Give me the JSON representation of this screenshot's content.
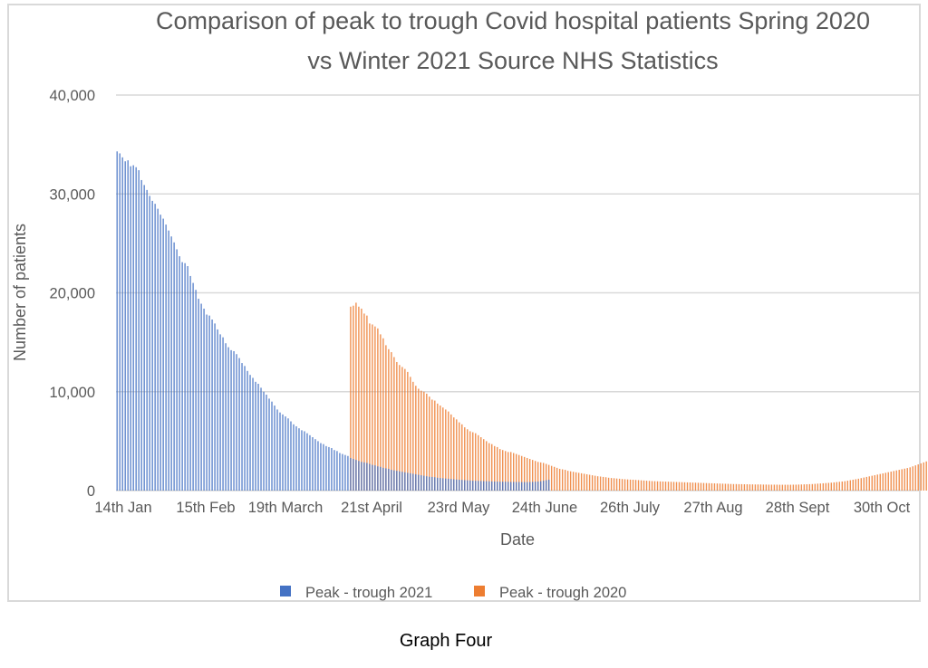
{
  "caption": "Graph Four",
  "chart_data": {
    "type": "bar",
    "title_lines": [
      "Comparison of peak to trough Covid hospital patients Spring 2020",
      "vs Winter 2021 Source NHS Statistics"
    ],
    "xlabel": "Date",
    "ylabel": "Number of patients",
    "ylim": [
      0,
      40000
    ],
    "yticks": [
      0,
      10000,
      20000,
      30000,
      40000
    ],
    "ytick_labels": [
      "0",
      "10,000",
      "20,000",
      "30,000",
      "40,000"
    ],
    "xtick_labels": [
      "14th Jan",
      "15th Feb",
      "19th March",
      "21st April",
      "23rd May",
      "24th June",
      "26th July",
      "27th Aug",
      "28th Sept",
      "30th Oct"
    ],
    "grid": true,
    "legend_position": "bottom",
    "num_categories": 296,
    "series": [
      {
        "name": "Peak - trough 2021",
        "color": "#4472c4",
        "start_index": 0,
        "values": [
          34300,
          34100,
          33700,
          33300,
          33400,
          32800,
          32900,
          32700,
          32400,
          31400,
          30900,
          30400,
          29800,
          29300,
          29000,
          28500,
          27900,
          27500,
          26900,
          26300,
          25700,
          25100,
          24400,
          23700,
          23100,
          23000,
          22700,
          21700,
          21000,
          20300,
          19400,
          18900,
          18400,
          17800,
          17700,
          17300,
          16900,
          16300,
          15800,
          15500,
          14900,
          14500,
          14200,
          14100,
          13800,
          13400,
          12900,
          12600,
          12100,
          11700,
          11400,
          11000,
          10800,
          10400,
          10000,
          9700,
          9300,
          9000,
          8600,
          8200,
          7900,
          7700,
          7500,
          7300,
          7000,
          6700,
          6500,
          6300,
          6100,
          6000,
          5800,
          5600,
          5400,
          5200,
          5000,
          4800,
          4700,
          4500,
          4400,
          4300,
          4100,
          4000,
          3800,
          3700,
          3600,
          3500,
          3300,
          3200,
          3100,
          3000,
          2900,
          2850,
          2800,
          2700,
          2600,
          2550,
          2450,
          2400,
          2300,
          2250,
          2200,
          2100,
          2050,
          2000,
          1950,
          1900,
          1850,
          1800,
          1750,
          1700,
          1650,
          1600,
          1550,
          1500,
          1450,
          1400,
          1380,
          1350,
          1300,
          1270,
          1250,
          1220,
          1200,
          1180,
          1150,
          1120,
          1100,
          1080,
          1060,
          1040,
          1020,
          1000,
          990,
          980,
          970,
          960,
          950,
          940,
          930,
          920,
          910,
          900,
          900,
          900,
          890,
          880,
          880,
          870,
          870,
          860,
          860,
          860,
          870,
          880,
          900,
          920,
          950,
          1000,
          1050,
          1100
        ]
      },
      {
        "name": "Peak - trough 2020",
        "color": "#ed7d31",
        "start_index": 86,
        "values": [
          18600,
          18700,
          19000,
          18600,
          18400,
          17900,
          17700,
          16900,
          16800,
          16600,
          16400,
          15800,
          15400,
          14700,
          14300,
          14000,
          13500,
          13000,
          12700,
          12500,
          12300,
          12000,
          11500,
          11000,
          10600,
          10300,
          10100,
          10000,
          9800,
          9500,
          9200,
          9100,
          8800,
          8600,
          8400,
          8200,
          8000,
          7700,
          7400,
          7200,
          6900,
          6700,
          6400,
          6200,
          6000,
          5900,
          5800,
          5600,
          5400,
          5200,
          5000,
          4800,
          4700,
          4500,
          4400,
          4200,
          4100,
          4000,
          3900,
          3900,
          3800,
          3700,
          3600,
          3500,
          3400,
          3300,
          3200,
          3100,
          3000,
          2900,
          2850,
          2800,
          2700,
          2600,
          2500,
          2400,
          2300,
          2200,
          2150,
          2100,
          2000,
          1950,
          1900,
          1850,
          1800,
          1750,
          1700,
          1650,
          1600,
          1550,
          1500,
          1450,
          1420,
          1380,
          1350,
          1300,
          1270,
          1250,
          1220,
          1200,
          1170,
          1150,
          1130,
          1110,
          1100,
          1080,
          1060,
          1040,
          1020,
          1000,
          980,
          960,
          950,
          940,
          930,
          920,
          910,
          900,
          890,
          880,
          870,
          860,
          850,
          840,
          830,
          820,
          810,
          800,
          790,
          780,
          770,
          760,
          750,
          740,
          730,
          720,
          710,
          700,
          690,
          680,
          670,
          660,
          660,
          650,
          650,
          640,
          640,
          630,
          630,
          620,
          620,
          620,
          610,
          610,
          600,
          600,
          600,
          600,
          590,
          590,
          590,
          590,
          590,
          600,
          600,
          610,
          620,
          630,
          640,
          650,
          660,
          680,
          700,
          720,
          740,
          760,
          780,
          800,
          830,
          860,
          890,
          920,
          950,
          1000,
          1050,
          1100,
          1150,
          1200,
          1260,
          1320,
          1380,
          1440,
          1500,
          1560,
          1620,
          1680,
          1740,
          1800,
          1860,
          1920,
          1980,
          2040,
          2100,
          2160,
          2220,
          2280,
          2350,
          2450,
          2550,
          2650,
          2750,
          2850,
          2950,
          3050,
          3150,
          3250,
          3300
        ]
      }
    ]
  }
}
